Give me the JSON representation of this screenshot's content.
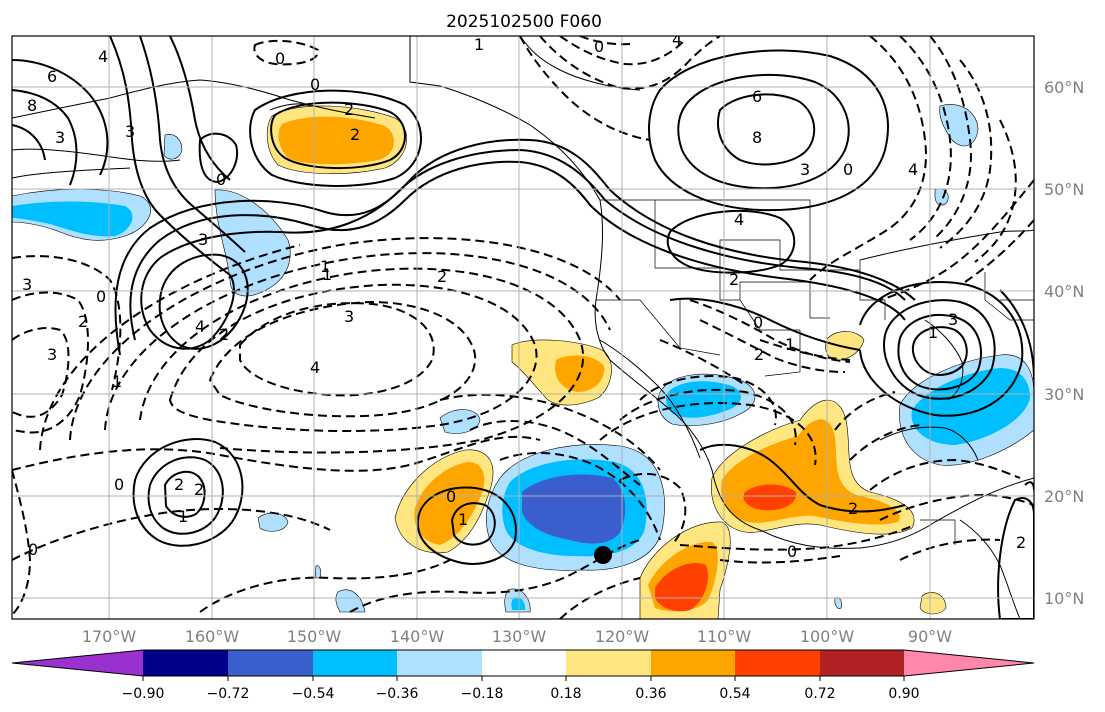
{
  "title": "2025102500 F060",
  "latitude_labels": [
    "60°N",
    "50°N",
    "40°N",
    "30°N",
    "20°N",
    "10°N"
  ],
  "longitude_labels": [
    "170°W",
    "160°W",
    "150°W",
    "140°W",
    "130°W",
    "120°W",
    "110°W",
    "100°W",
    "90°W"
  ],
  "colorbar": {
    "tick_labels": [
      "−0.90",
      "−0.72",
      "−0.54",
      "−0.36",
      "−0.18",
      "0.18",
      "0.36",
      "0.54",
      "0.72",
      "0.90"
    ],
    "colors": [
      "#9b30d0",
      "#00008b",
      "#3a5fcd",
      "#00bfff",
      "#b0e0ff",
      "#ffffff",
      "#ffe680",
      "#ffa500",
      "#ff4000",
      "#b22222",
      "#ff88aa"
    ]
  },
  "contour_labels": [
    "6",
    "4",
    "0",
    "1",
    "3",
    "0",
    "2",
    "2",
    "0",
    "3",
    "4",
    "2",
    "1",
    "0",
    "8",
    "4",
    "6",
    "3",
    "0",
    "4",
    "8",
    "3",
    "2",
    "3",
    "3",
    "4",
    "2",
    "1",
    "1",
    "0",
    "0",
    "3",
    "2",
    "2",
    "1",
    "2",
    "1",
    "0",
    "0",
    "2",
    "0",
    "1",
    "2",
    "0",
    "2",
    "1",
    "3",
    "4"
  ],
  "marker_color": "#000000"
}
